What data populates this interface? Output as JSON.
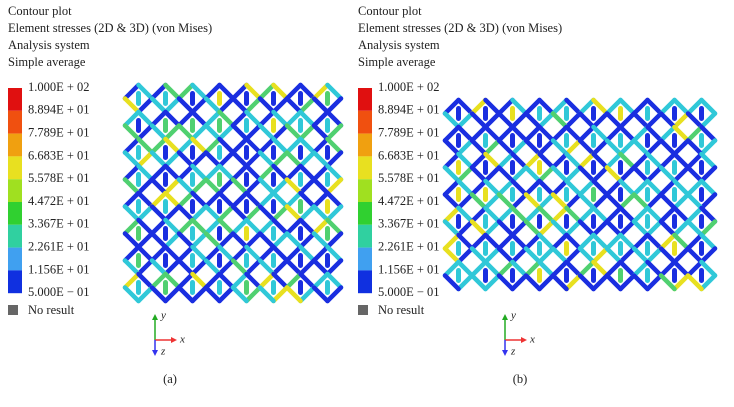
{
  "panels": [
    {
      "header": [
        "Contour plot",
        "Element stresses (2D & 3D) (von Mises)",
        "Analysis system",
        "Simple average"
      ],
      "legend": [
        "1.000E + 02",
        "8.894E + 01",
        "7.789E + 01",
        "6.683E + 01",
        "5.578E + 01",
        "4.472E + 01",
        "3.367E + 01",
        "2.261E + 01",
        "1.156E + 01",
        "5.000E − 01"
      ],
      "no_result": "No result",
      "axes": {
        "y": "y",
        "x": "x",
        "z": "z"
      },
      "caption": "(a)"
    },
    {
      "header": [
        "Contour plot",
        "Element stresses (2D & 3D) (von Mises)",
        "Analysis system",
        "Simple average"
      ],
      "legend": [
        "1.000E + 02",
        "8.894E + 01",
        "7.789E + 01",
        "6.683E + 01",
        "5.578E + 01",
        "4.472E + 01",
        "3.367E + 01",
        "2.261E + 01",
        "1.156E + 01",
        "5.000E − 01"
      ],
      "no_result": "No result",
      "axes": {
        "y": "y",
        "x": "x",
        "z": "z"
      },
      "caption": "(b)"
    }
  ]
}
